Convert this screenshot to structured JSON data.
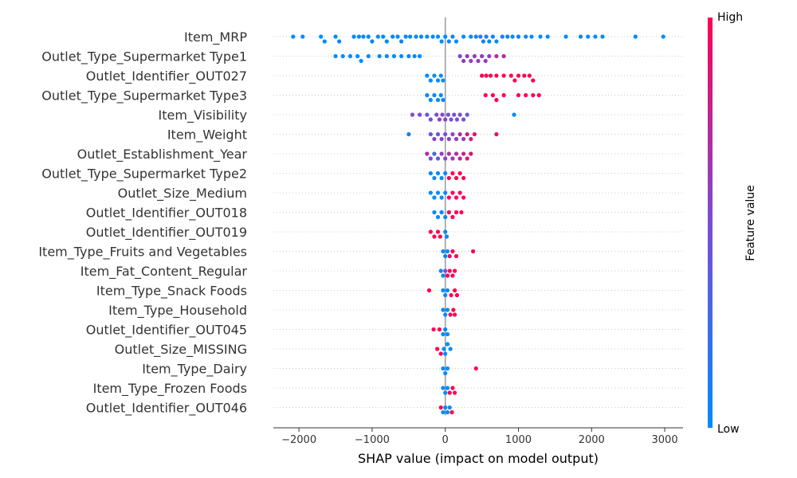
{
  "chart_data": {
    "type": "scatter",
    "subtype": "shap-beeswarm",
    "title": "",
    "xlabel": "SHAP value (impact on model output)",
    "ylabel": "",
    "xlim": [
      -2350,
      3250
    ],
    "xticks": [
      -2000,
      -1000,
      0,
      1000,
      2000,
      3000
    ],
    "xtick_labels": [
      "−2000",
      "−1000",
      "0",
      "1000",
      "2000",
      "3000"
    ],
    "grid": false,
    "colorbar": {
      "label": "Feature value",
      "high_label": "High",
      "low_label": "Low",
      "low_color": "#008bfb",
      "high_color": "#ff0052",
      "mid_color": "#7b4cd6"
    },
    "features": [
      {
        "name": "Item_MRP",
        "points": [
          [
            -2080,
            0.0
          ],
          [
            -1950,
            0.0
          ],
          [
            -1700,
            0.0
          ],
          [
            -1650,
            0.0
          ],
          [
            -1500,
            0.0
          ],
          [
            -1450,
            0.0
          ],
          [
            -1250,
            0.0
          ],
          [
            -1180,
            0.0
          ],
          [
            -1120,
            0.0
          ],
          [
            -1050,
            0.0
          ],
          [
            -1000,
            0.05
          ],
          [
            -920,
            0.0
          ],
          [
            -850,
            0.0
          ],
          [
            -800,
            0.0
          ],
          [
            -720,
            0.05
          ],
          [
            -650,
            0.0
          ],
          [
            -600,
            0.1
          ],
          [
            -540,
            0.0
          ],
          [
            -480,
            0.0
          ],
          [
            -400,
            0.0
          ],
          [
            -330,
            0.05
          ],
          [
            -250,
            0.0
          ],
          [
            -170,
            0.0
          ],
          [
            -100,
            0.0
          ],
          [
            -50,
            0.0
          ],
          [
            0,
            0.0
          ],
          [
            50,
            0.0
          ],
          [
            100,
            0.1
          ],
          [
            150,
            0.0
          ],
          [
            250,
            0.0
          ],
          [
            350,
            0.0
          ],
          [
            420,
            0.1
          ],
          [
            480,
            0.2
          ],
          [
            520,
            0.05
          ],
          [
            560,
            0.15
          ],
          [
            600,
            0.0
          ],
          [
            650,
            0.05
          ],
          [
            700,
            0.0
          ],
          [
            780,
            0.1
          ],
          [
            850,
            0.0
          ],
          [
            920,
            0.0
          ],
          [
            1000,
            0.1
          ],
          [
            1100,
            0.05
          ],
          [
            1180,
            0.0
          ],
          [
            1300,
            0.0
          ],
          [
            1400,
            0.0
          ],
          [
            1650,
            0.0
          ],
          [
            1850,
            0.0
          ],
          [
            1950,
            0.0
          ],
          [
            2050,
            0.0
          ],
          [
            2150,
            0.0
          ],
          [
            2600,
            0.0
          ],
          [
            2980,
            0.0
          ]
        ]
      },
      {
        "name": "Outlet_Type_Supermarket Type1",
        "points": [
          [
            -1500,
            0.0
          ],
          [
            -1400,
            0.0
          ],
          [
            -1300,
            0.0
          ],
          [
            -1200,
            0.0
          ],
          [
            -1150,
            0.0
          ],
          [
            -1050,
            0.0
          ],
          [
            -900,
            0.0
          ],
          [
            -800,
            0.0
          ],
          [
            -700,
            0.0
          ],
          [
            -600,
            0.0
          ],
          [
            -500,
            0.0
          ],
          [
            -420,
            0.0
          ],
          [
            -350,
            0.0
          ],
          [
            200,
            0.5
          ],
          [
            250,
            0.6
          ],
          [
            300,
            0.6
          ],
          [
            350,
            0.6
          ],
          [
            400,
            0.6
          ],
          [
            450,
            0.6
          ],
          [
            500,
            0.6
          ],
          [
            550,
            0.6
          ],
          [
            600,
            0.6
          ],
          [
            700,
            0.7
          ],
          [
            800,
            0.7
          ]
        ]
      },
      {
        "name": "Outlet_Identifier_OUT027",
        "points": [
          [
            -250,
            0.0
          ],
          [
            -200,
            0.0
          ],
          [
            -150,
            0.0
          ],
          [
            -100,
            0.0
          ],
          [
            -60,
            0.0
          ],
          [
            -30,
            0.0
          ],
          [
            500,
            1.0
          ],
          [
            560,
            1.0
          ],
          [
            620,
            1.0
          ],
          [
            700,
            1.0
          ],
          [
            800,
            1.0
          ],
          [
            900,
            1.0
          ],
          [
            950,
            1.0
          ],
          [
            1000,
            1.0
          ],
          [
            1080,
            1.0
          ],
          [
            1150,
            1.0
          ],
          [
            1200,
            1.0
          ]
        ]
      },
      {
        "name": "Outlet_Type_Supermarket Type3",
        "points": [
          [
            -250,
            0.0
          ],
          [
            -200,
            0.0
          ],
          [
            -150,
            0.0
          ],
          [
            -100,
            0.0
          ],
          [
            -60,
            0.0
          ],
          [
            -30,
            0.0
          ],
          [
            550,
            1.0
          ],
          [
            650,
            1.0
          ],
          [
            700,
            1.0
          ],
          [
            800,
            1.0
          ],
          [
            1000,
            1.0
          ],
          [
            1100,
            1.0
          ],
          [
            1200,
            1.0
          ],
          [
            1280,
            1.0
          ]
        ]
      },
      {
        "name": "Item_Visibility",
        "points": [
          [
            -450,
            0.5
          ],
          [
            -350,
            0.5
          ],
          [
            -250,
            0.4
          ],
          [
            -200,
            0.5
          ],
          [
            -120,
            0.5
          ],
          [
            -80,
            0.6
          ],
          [
            -40,
            0.55
          ],
          [
            0,
            0.55
          ],
          [
            40,
            0.45
          ],
          [
            80,
            0.5
          ],
          [
            120,
            0.5
          ],
          [
            160,
            0.45
          ],
          [
            200,
            0.5
          ],
          [
            250,
            0.45
          ],
          [
            300,
            0.4
          ],
          [
            940,
            0.0
          ]
        ]
      },
      {
        "name": "Item_Weight",
        "points": [
          [
            -500,
            0.1
          ],
          [
            -200,
            0.5
          ],
          [
            -150,
            0.55
          ],
          [
            -100,
            0.5
          ],
          [
            -50,
            0.55
          ],
          [
            0,
            0.5
          ],
          [
            50,
            0.55
          ],
          [
            100,
            0.5
          ],
          [
            150,
            0.6
          ],
          [
            200,
            0.7
          ],
          [
            250,
            0.6
          ],
          [
            300,
            0.8
          ],
          [
            350,
            0.8
          ],
          [
            400,
            0.9
          ],
          [
            700,
            0.9
          ]
        ]
      },
      {
        "name": "Outlet_Establishment_Year",
        "points": [
          [
            -250,
            0.7
          ],
          [
            -200,
            0.5
          ],
          [
            -150,
            0.3
          ],
          [
            -100,
            0.4
          ],
          [
            -50,
            0.6
          ],
          [
            0,
            0.6
          ],
          [
            50,
            0.7
          ],
          [
            100,
            0.65
          ],
          [
            150,
            0.7
          ],
          [
            200,
            0.8
          ],
          [
            250,
            0.8
          ],
          [
            300,
            0.85
          ],
          [
            350,
            0.9
          ]
        ]
      },
      {
        "name": "Outlet_Type_Supermarket Type2",
        "points": [
          [
            -200,
            0.0
          ],
          [
            -150,
            0.0
          ],
          [
            -100,
            0.0
          ],
          [
            -50,
            0.0
          ],
          [
            0,
            0.0
          ],
          [
            50,
            1.0
          ],
          [
            100,
            1.0
          ],
          [
            150,
            1.0
          ],
          [
            200,
            1.0
          ],
          [
            250,
            1.0
          ]
        ]
      },
      {
        "name": "Outlet_Size_Medium",
        "points": [
          [
            -200,
            0.0
          ],
          [
            -150,
            0.0
          ],
          [
            -100,
            0.0
          ],
          [
            -50,
            0.0
          ],
          [
            0,
            0.0
          ],
          [
            50,
            1.0
          ],
          [
            100,
            1.0
          ],
          [
            150,
            1.0
          ],
          [
            200,
            1.0
          ],
          [
            250,
            1.0
          ]
        ]
      },
      {
        "name": "Outlet_Identifier_OUT018",
        "points": [
          [
            -150,
            0.0
          ],
          [
            -100,
            0.0
          ],
          [
            -50,
            0.0
          ],
          [
            0,
            0.0
          ],
          [
            50,
            1.0
          ],
          [
            100,
            1.0
          ],
          [
            150,
            1.0
          ],
          [
            220,
            1.0
          ]
        ]
      },
      {
        "name": "Outlet_Identifier_OUT019",
        "points": [
          [
            -200,
            1.0
          ],
          [
            -150,
            1.0
          ],
          [
            -100,
            1.0
          ],
          [
            -70,
            1.0
          ],
          [
            0,
            0.0
          ],
          [
            20,
            0.0
          ]
        ]
      },
      {
        "name": "Item_Type_Fruits and Vegetables",
        "points": [
          [
            -30,
            0.0
          ],
          [
            0,
            0.0
          ],
          [
            30,
            0.0
          ],
          [
            60,
            1.0
          ],
          [
            100,
            1.0
          ],
          [
            150,
            1.0
          ],
          [
            380,
            1.0
          ]
        ]
      },
      {
        "name": "Item_Fat_Content_Regular",
        "points": [
          [
            -60,
            0.0
          ],
          [
            -30,
            0.0
          ],
          [
            0,
            0.5
          ],
          [
            30,
            1.0
          ],
          [
            60,
            1.0
          ],
          [
            100,
            1.0
          ],
          [
            130,
            1.0
          ]
        ]
      },
      {
        "name": "Item_Type_Snack Foods",
        "points": [
          [
            -220,
            1.0
          ],
          [
            -30,
            0.0
          ],
          [
            0,
            0.0
          ],
          [
            30,
            0.0
          ],
          [
            80,
            1.0
          ],
          [
            130,
            1.0
          ],
          [
            160,
            1.0
          ]
        ]
      },
      {
        "name": "Item_Type_Household",
        "points": [
          [
            -30,
            0.0
          ],
          [
            0,
            0.0
          ],
          [
            30,
            0.0
          ],
          [
            70,
            1.0
          ],
          [
            110,
            1.0
          ],
          [
            130,
            1.0
          ]
        ]
      },
      {
        "name": "Outlet_Identifier_OUT045",
        "points": [
          [
            -160,
            1.0
          ],
          [
            -80,
            1.0
          ],
          [
            -30,
            0.0
          ],
          [
            0,
            0.0
          ],
          [
            30,
            0.0
          ]
        ]
      },
      {
        "name": "Outlet_Size_MISSING",
        "points": [
          [
            -110,
            1.0
          ],
          [
            -60,
            1.0
          ],
          [
            -20,
            0.0
          ],
          [
            0,
            0.0
          ],
          [
            30,
            0.0
          ],
          [
            70,
            0.0
          ]
        ]
      },
      {
        "name": "Item_Type_Dairy",
        "points": [
          [
            -30,
            0.0
          ],
          [
            0,
            0.0
          ],
          [
            30,
            0.0
          ],
          [
            420,
            1.0
          ]
        ]
      },
      {
        "name": "Item_Type_Frozen Foods",
        "points": [
          [
            -30,
            0.0
          ],
          [
            0,
            0.0
          ],
          [
            30,
            0.0
          ],
          [
            60,
            1.0
          ],
          [
            100,
            1.0
          ],
          [
            130,
            1.0
          ]
        ]
      },
      {
        "name": "Outlet_Identifier_OUT046",
        "points": [
          [
            -60,
            1.0
          ],
          [
            -30,
            0.0
          ],
          [
            0,
            0.0
          ],
          [
            30,
            0.0
          ],
          [
            60,
            0.0
          ],
          [
            90,
            1.0
          ]
        ]
      }
    ]
  }
}
